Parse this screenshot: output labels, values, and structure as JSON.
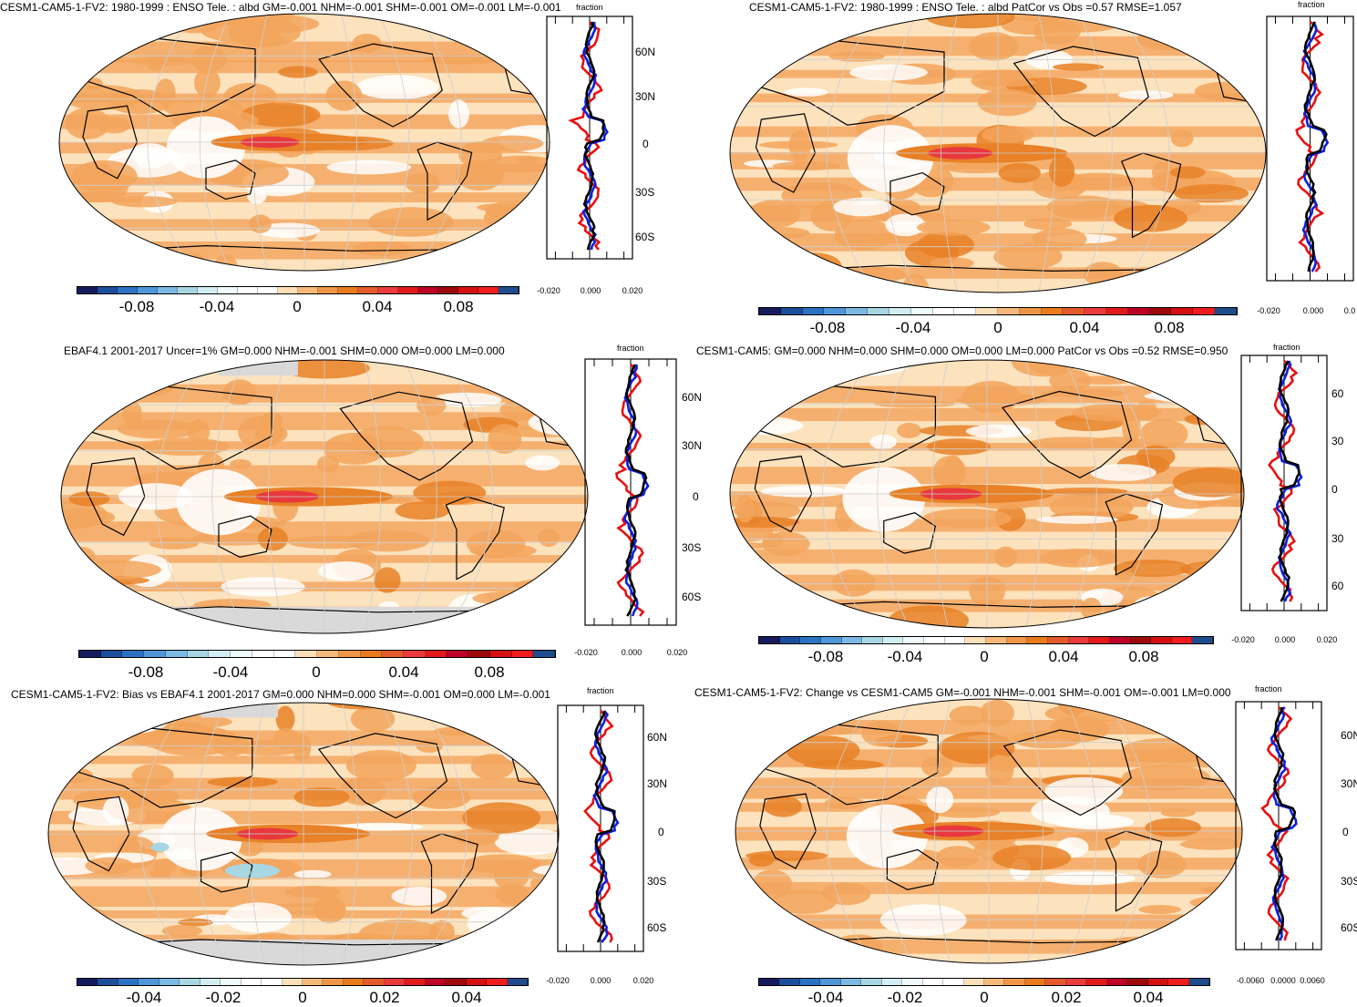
{
  "panels": [
    {
      "id": "p1",
      "title": "CESM1-CAM5-1-FV2: 1980-1999 : ENSO Tele. : albd GM=-0.001 NHM=-0.001 SHM=-0.001 OM=-0.001 LM=-0.001",
      "colorbar_labels": [
        "-0.08",
        "-0.04",
        "0",
        "0.04",
        "0.08"
      ],
      "profile_title": "fraction",
      "profile_x_labels": [
        "-0.020",
        "0.000",
        "0.020"
      ],
      "lat_labels": [
        "60N",
        "30N",
        "0",
        "30S",
        "60S"
      ]
    },
    {
      "id": "p2",
      "title": "CESM1-CAM5-1-FV2: 1980-1999 : ENSO Tele. : albd PatCor vs Obs =0.57 RMSE=1.057",
      "colorbar_labels": [
        "-0.08",
        "-0.04",
        "0",
        "0.04",
        "0.08"
      ],
      "profile_title": "fraction",
      "profile_x_labels": [
        "-0.020",
        "0.000",
        "0.0"
      ],
      "lat_labels": []
    },
    {
      "id": "p3",
      "title": "EBAF4.1 2001-2017 Uncer=1% GM=0.000 NHM=-0.001 SHM=0.000 OM=0.000 LM=0.000",
      "colorbar_labels": [
        "-0.08",
        "-0.04",
        "0",
        "0.04",
        "0.08"
      ],
      "profile_title": "fraction",
      "profile_x_labels": [
        "-0.020",
        "0.000",
        "0.020"
      ],
      "lat_labels": [
        "60N",
        "30N",
        "0",
        "30S",
        "60S"
      ]
    },
    {
      "id": "p4",
      "title": "CESM1-CAM5: GM=0.000 NHM=0.000 SHM=0.000 OM=0.000 LM=0.000 PatCor vs Obs =0.52 RMSE=0.950",
      "colorbar_labels": [
        "-0.08",
        "-0.04",
        "0",
        "0.04",
        "0.08"
      ],
      "profile_title": "fraction",
      "profile_x_labels": [
        "-0.020",
        "0.000",
        "0.020"
      ],
      "lat_labels": [
        "60",
        "30",
        "0",
        "30",
        "60"
      ]
    },
    {
      "id": "p5",
      "title": "CESM1-CAM5-1-FV2: Bias vs EBAF4.1 2001-2017 GM=0.000 NHM=0.000 SHM=-0.001 OM=0.000 LM=-0.001",
      "colorbar_labels": [
        "-0.04",
        "-0.02",
        "0",
        "0.02",
        "0.04"
      ],
      "profile_title": "fraction",
      "profile_x_labels": [
        "-0.020",
        "0.000",
        "0.020"
      ],
      "lat_labels": [
        "60N",
        "30N",
        "0",
        "30S",
        "60S"
      ]
    },
    {
      "id": "p6",
      "title": "CESM1-CAM5-1-FV2: Change vs CESM1-CAM5 GM=-0.001 NHM=-0.001 SHM=-0.001 OM=-0.001 LM=0.000",
      "colorbar_labels": [
        "-0.04",
        "-0.02",
        "0",
        "0.02",
        "0.04"
      ],
      "profile_title": "fraction",
      "profile_x_labels": [
        "-0.0060",
        "0.0000",
        "0.0060"
      ],
      "lat_labels": [
        "60N",
        "30N",
        "0",
        "30S",
        "60S"
      ]
    }
  ],
  "colors": {
    "colorbar": [
      "#161a5e",
      "#1b4f9c",
      "#2b73c2",
      "#4e97d8",
      "#7cb9e3",
      "#a8d6e2",
      "#d3eef2",
      "#eefafb",
      "#ffffff",
      "#ffffff",
      "#fde0b8",
      "#f6b97a",
      "#ee9548",
      "#e97b1c",
      "#e45a2c",
      "#ea3b3d",
      "#e31a1c",
      "#bd0026",
      "#9e0a0a",
      "#d41010",
      "#f11c1c",
      "#1f4c8c"
    ],
    "land_outline": "#000000",
    "ocean_base": "#fce2bd",
    "mid_orange": "#f2a45c",
    "strong_orange": "#e88127",
    "red": "#e8383d",
    "blue_line": "#0a1fe0",
    "red_line": "#e81010",
    "black_line": "#000000",
    "grid": "#cfcfcf"
  }
}
